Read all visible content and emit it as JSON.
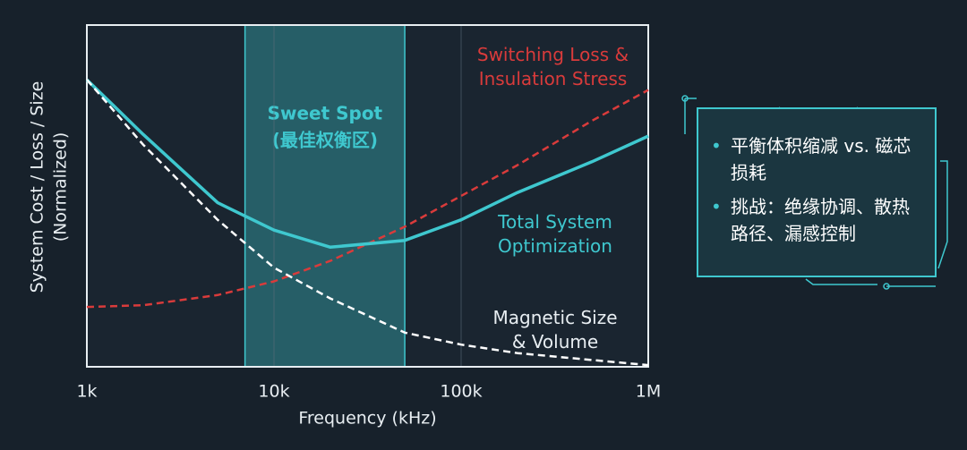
{
  "chart_data": {
    "type": "line",
    "xlabel": "Frequency (kHz)",
    "ylabel": [
      "System Cost / Loss / Size",
      "(Normalized)"
    ],
    "xscale": "log",
    "xlim": [
      1000,
      1000000
    ],
    "xticks": [
      {
        "value": 1000,
        "label": "1k"
      },
      {
        "value": 10000,
        "label": "10k"
      },
      {
        "value": 100000,
        "label": "100k"
      },
      {
        "value": 1000000,
        "label": "1M"
      }
    ],
    "ylim": [
      0,
      1
    ],
    "grid": true,
    "x": [
      1000,
      2000,
      5000,
      10000,
      20000,
      50000,
      100000,
      200000,
      500000,
      1000000
    ],
    "series": [
      {
        "name": "Switching Loss & Insulation Stress",
        "color": "#d93b3b",
        "dash": true,
        "values": [
          0.175,
          0.18,
          0.21,
          0.25,
          0.31,
          0.41,
          0.5,
          0.59,
          0.72,
          0.81
        ]
      },
      {
        "name": "Total System Optimization",
        "color": "#3fc8cf",
        "dash": false,
        "values": [
          0.84,
          0.68,
          0.48,
          0.4,
          0.35,
          0.37,
          0.43,
          0.51,
          0.6,
          0.675
        ]
      },
      {
        "name": "Magnetic Size & Volume",
        "color": "#ffffff",
        "dash": true,
        "values": [
          0.84,
          0.65,
          0.43,
          0.29,
          0.2,
          0.1,
          0.065,
          0.04,
          0.02,
          0.005
        ]
      }
    ],
    "region": {
      "label": "Sweet Spot",
      "sublabel": "(最佳权衡区)",
      "x": [
        7000,
        50000
      ],
      "color": "#3fc8cf"
    }
  },
  "panel": {
    "items": [
      "平衡体积缩减 vs. 磁芯损耗",
      "挑战：绝缘协调、散热路径、漏感控制"
    ]
  }
}
